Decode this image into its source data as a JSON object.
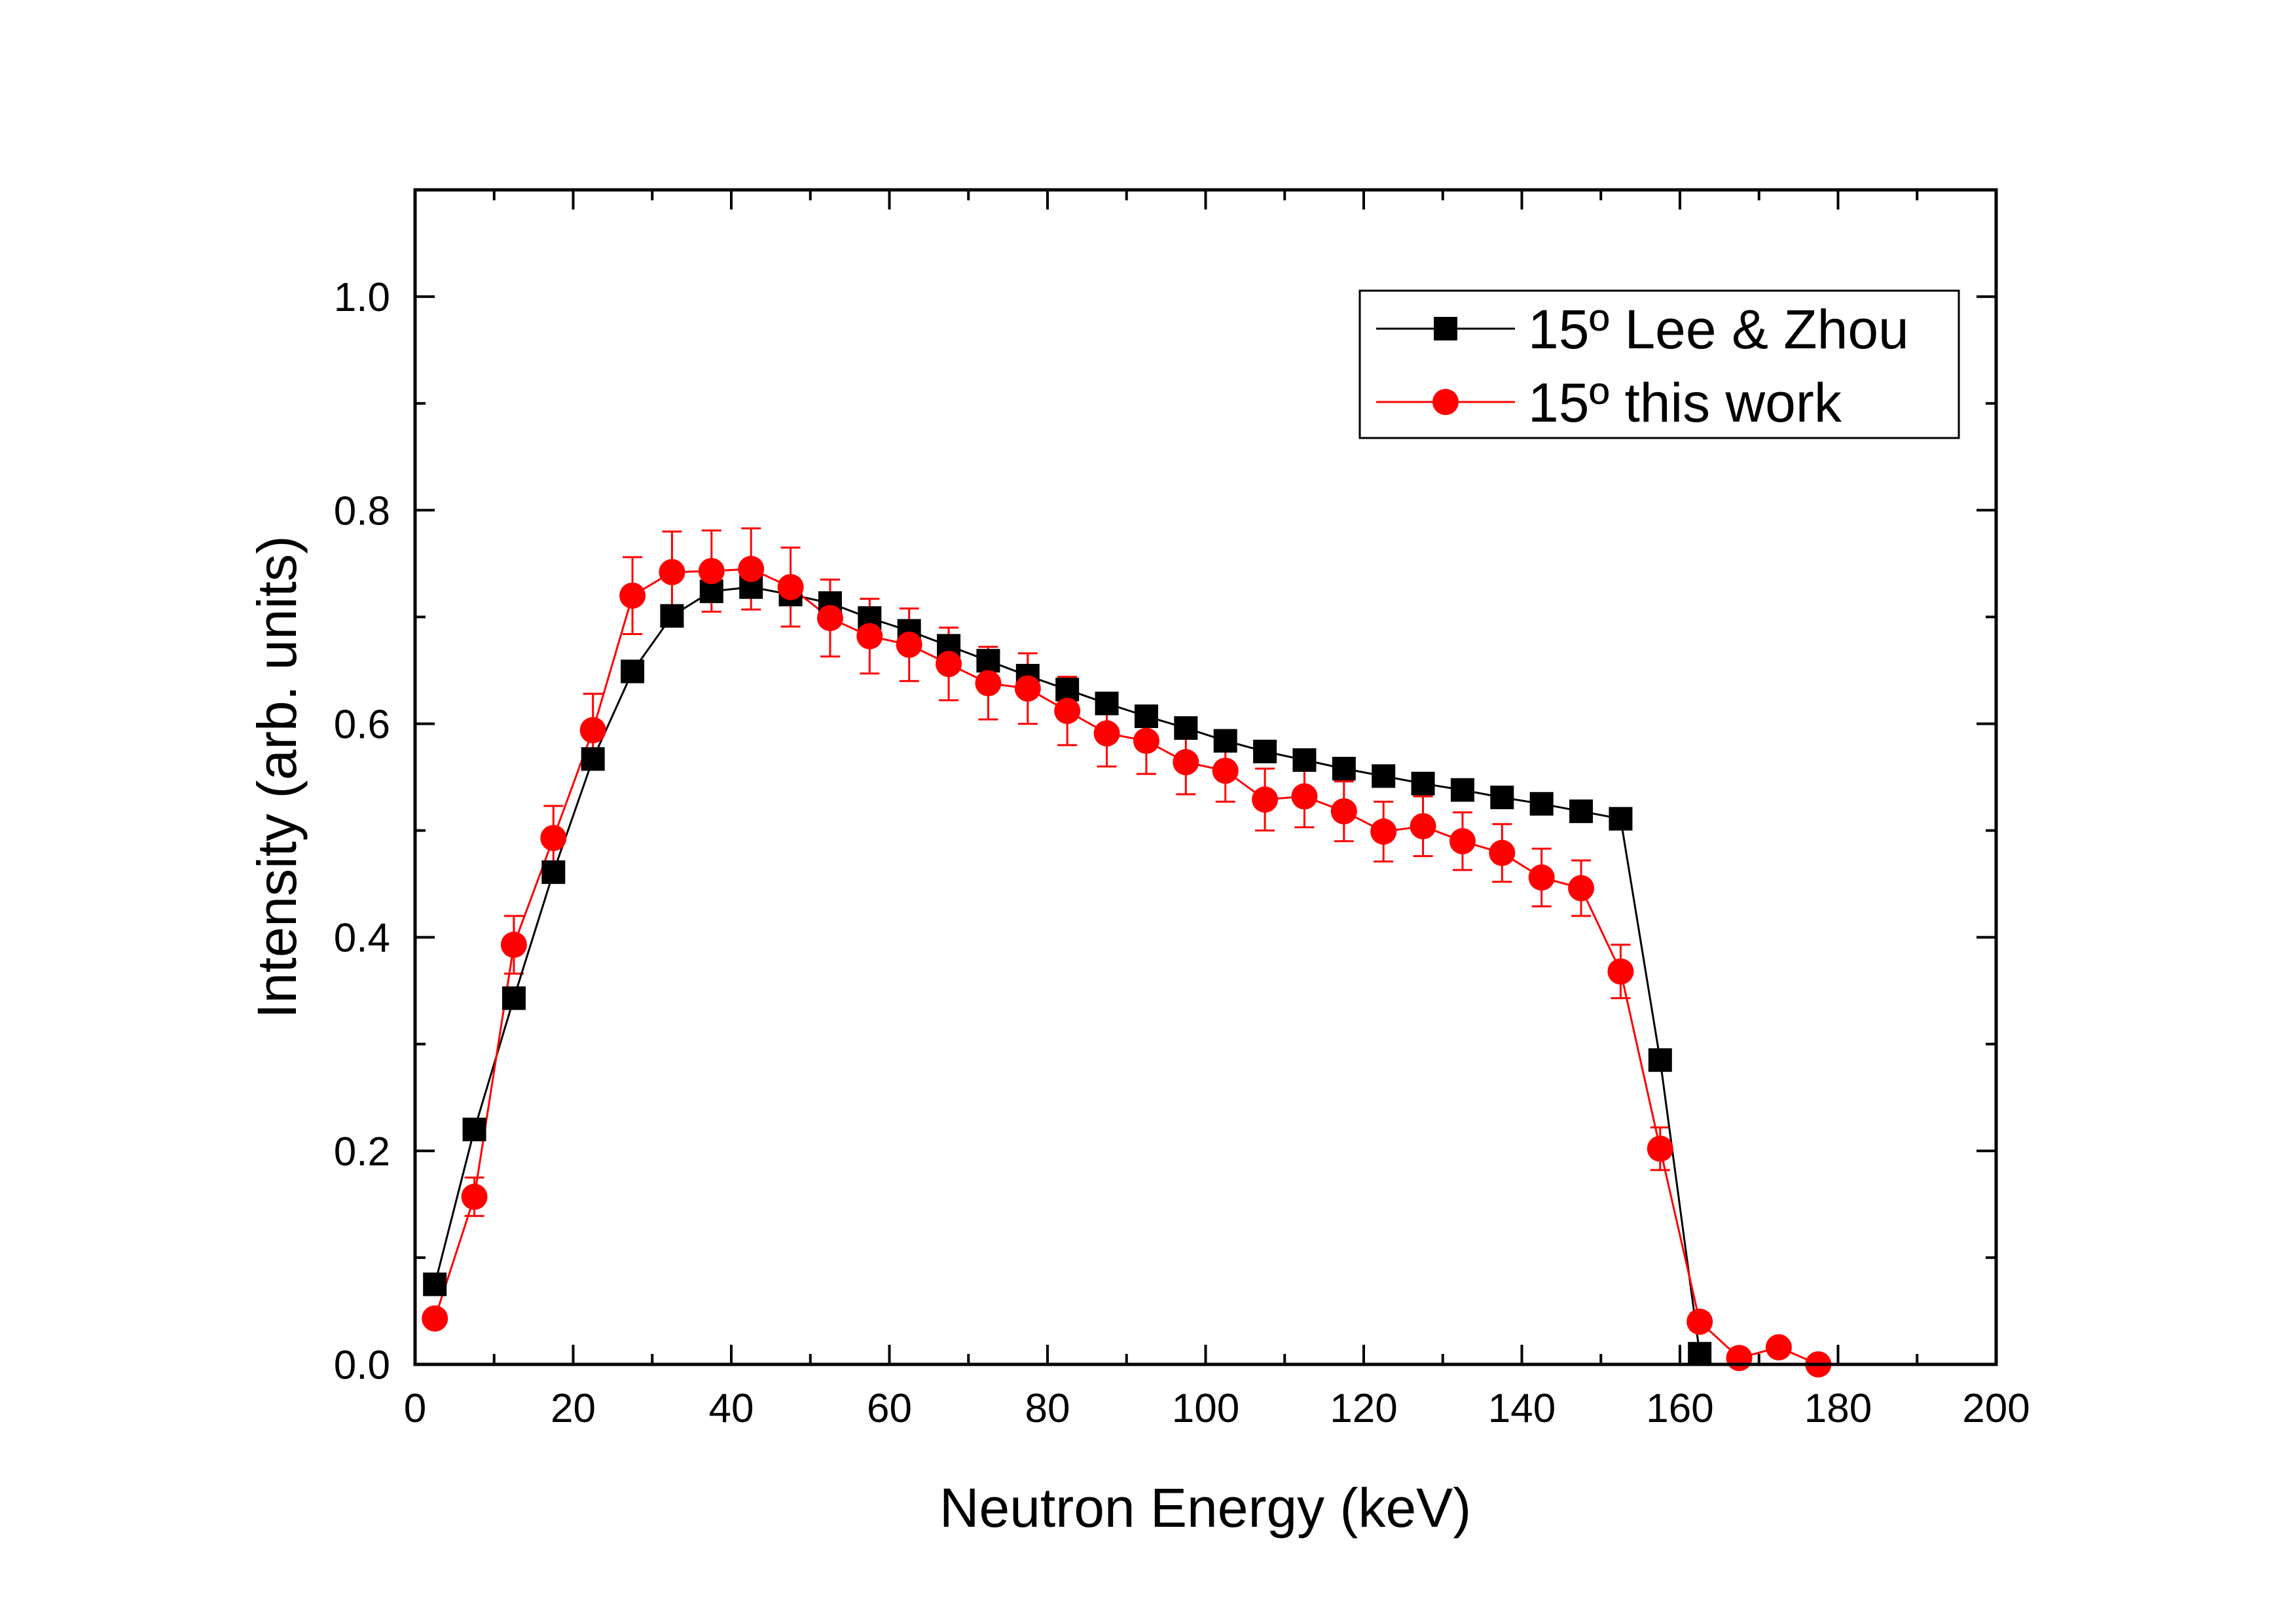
{
  "chart_data": {
    "type": "line",
    "title": "",
    "xlabel": "Neutron Energy (keV)",
    "ylabel": "Intensity (arb. units)",
    "xlim": [
      0,
      200
    ],
    "ylim": [
      0,
      1.1
    ],
    "xticks": [
      0,
      20,
      40,
      60,
      80,
      100,
      120,
      140,
      160,
      180,
      200
    ],
    "xtick_labels": [
      "0",
      "20",
      "40",
      "60",
      "80",
      "100",
      "120",
      "140",
      "160",
      "180",
      "200"
    ],
    "yticks": [
      0,
      0.2,
      0.4,
      0.6,
      0.8,
      1.0
    ],
    "ytick_labels": [
      "0.0",
      "0.2",
      "0.4",
      "0.6",
      "0.8",
      "1.0"
    ],
    "grid": false,
    "legend_position": "top-right",
    "series": [
      {
        "name": "15º Lee & Zhou",
        "color": "#000000",
        "marker": "square",
        "x": [
          2.5,
          7.5,
          12.5,
          17.5,
          22.5,
          27.5,
          32.5,
          37.5,
          42.5,
          47.5,
          52.5,
          57.5,
          62.5,
          67.5,
          72.5,
          77.5,
          82.5,
          87.5,
          92.5,
          97.5,
          102.5,
          107.5,
          112.5,
          117.5,
          122.5,
          127.5,
          132.5,
          137.5,
          142.5,
          147.5,
          152.5,
          157.5,
          162.5
        ],
        "y": [
          0.075,
          0.22,
          0.343,
          0.461,
          0.567,
          0.649,
          0.701,
          0.724,
          0.728,
          0.721,
          0.713,
          0.699,
          0.687,
          0.673,
          0.659,
          0.645,
          0.632,
          0.619,
          0.607,
          0.596,
          0.584,
          0.574,
          0.566,
          0.558,
          0.551,
          0.544,
          0.538,
          0.531,
          0.525,
          0.518,
          0.511,
          0.285,
          0.01
        ]
      },
      {
        "name": "15º this work",
        "color": "#ff0000",
        "marker": "circle",
        "x": [
          2.5,
          7.5,
          12.5,
          17.5,
          22.5,
          27.5,
          32.5,
          37.5,
          42.5,
          47.5,
          52.5,
          57.5,
          62.5,
          67.5,
          72.5,
          77.5,
          82.5,
          87.5,
          92.5,
          97.5,
          102.5,
          107.5,
          112.5,
          117.5,
          122.5,
          127.5,
          132.5,
          137.5,
          142.5,
          147.5,
          152.5,
          157.5,
          162.5,
          167.5,
          172.5,
          177.5
        ],
        "y": [
          0.043,
          0.157,
          0.393,
          0.493,
          0.594,
          0.72,
          0.742,
          0.743,
          0.745,
          0.728,
          0.699,
          0.682,
          0.674,
          0.656,
          0.638,
          0.633,
          0.612,
          0.591,
          0.584,
          0.564,
          0.556,
          0.529,
          0.532,
          0.518,
          0.499,
          0.504,
          0.49,
          0.479,
          0.456,
          0.446,
          0.368,
          0.202,
          0.04,
          0.006,
          0.016,
          0.0
        ],
        "error": [
          0.005,
          0.018,
          0.027,
          0.03,
          0.034,
          0.036,
          0.038,
          0.038,
          0.038,
          0.037,
          0.036,
          0.035,
          0.034,
          0.034,
          0.034,
          0.033,
          0.032,
          0.031,
          0.031,
          0.03,
          0.029,
          0.029,
          0.029,
          0.028,
          0.028,
          0.028,
          0.027,
          0.027,
          0.027,
          0.026,
          0.025,
          0.02,
          0.008,
          0.003,
          0.004,
          0.002
        ]
      }
    ]
  }
}
